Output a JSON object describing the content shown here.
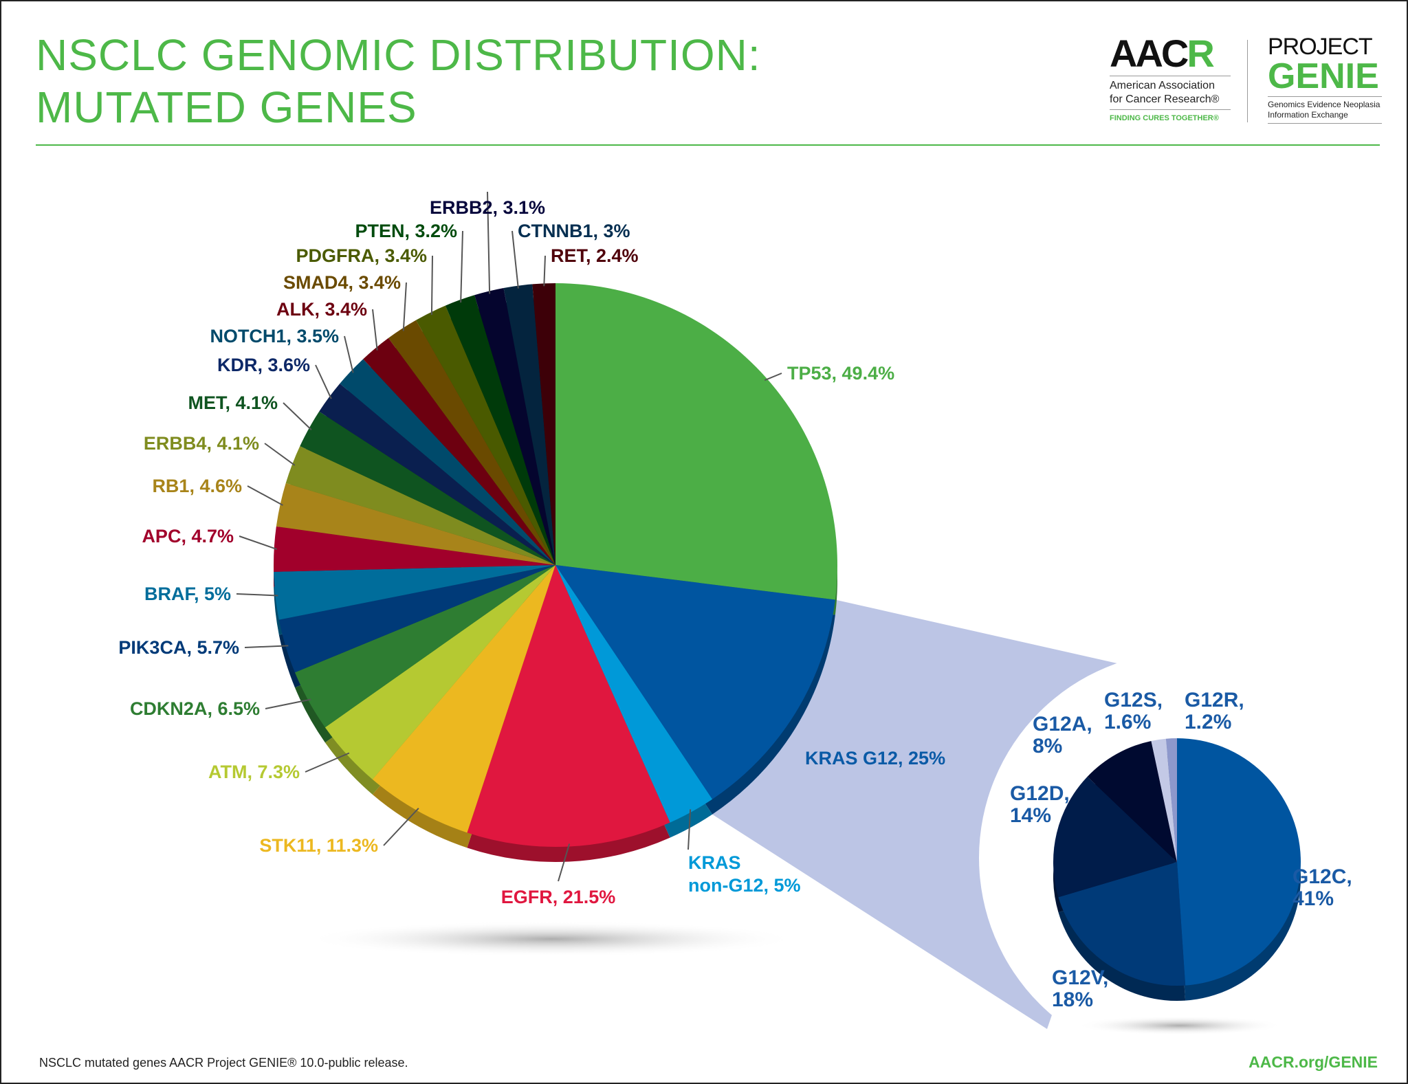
{
  "header": {
    "title_line1": "NSCLC GENOMIC DISTRIBUTION:",
    "title_line2": "MUTATED GENES",
    "aacr_logo": {
      "word_black": "AAC",
      "word_green": "R",
      "line1": "American Association",
      "line2": "for Cancer Research®",
      "tagline": "FINDING CURES TOGETHER®"
    },
    "genie_logo": {
      "project": "PROJECT",
      "genie": "GENIE",
      "line1": "Genomics Evidence Neoplasia",
      "line2": "Information Exchange"
    }
  },
  "footer": {
    "source": "NSCLC mutated genes AACR Project GENIE® 10.0-public release.",
    "link": "AACR.org/GENIE"
  },
  "chart_data": [
    {
      "type": "pie",
      "title": "",
      "start": "top, clockwise",
      "slices": [
        {
          "name": "TP53",
          "value": 49.4,
          "label": [
            "TP53, 49.4%"
          ],
          "color": "#4cae46"
        },
        {
          "name": "KRAS G12",
          "value": 25,
          "label": [
            "KRAS G12, 25%"
          ],
          "color": "#0055a0"
        },
        {
          "name": "KRAS non-G12",
          "value": 5,
          "label": [
            "KRAS",
            "non-G12, 5%"
          ],
          "color": "#0099d8"
        },
        {
          "name": "EGFR",
          "value": 21.5,
          "label": [
            "EGFR, 21.5%"
          ],
          "color": "#e0173f"
        },
        {
          "name": "STK11",
          "value": 11.3,
          "label": [
            "STK11, 11.3%"
          ],
          "color": "#ecb820"
        },
        {
          "name": "ATM",
          "value": 7.3,
          "label": [
            "ATM, 7.3%"
          ],
          "color": "#b5c932"
        },
        {
          "name": "CDKN2A",
          "value": 6.5,
          "label": [
            "CDKN2A, 6.5%"
          ],
          "color": "#2e7d32"
        },
        {
          "name": "PIK3CA",
          "value": 5.7,
          "label": [
            "PIK3CA, 5.7%"
          ],
          "color": "#003a78"
        },
        {
          "name": "BRAF",
          "value": 5,
          "label": [
            "BRAF, 5%"
          ],
          "color": "#006d9b"
        },
        {
          "name": "APC",
          "value": 4.7,
          "label": [
            "APC, 4.7%"
          ],
          "color": "#a1002b"
        },
        {
          "name": "RB1",
          "value": 4.6,
          "label": [
            "RB1, 4.6%"
          ],
          "color": "#a8841a"
        },
        {
          "name": "ERBB4",
          "value": 4.1,
          "label": [
            "ERBB4, 4.1%"
          ],
          "color": "#7f8c1f"
        },
        {
          "name": "MET",
          "value": 4.1,
          "label": [
            "MET, 4.1%"
          ],
          "color": "#0f5420"
        },
        {
          "name": "KDR",
          "value": 3.6,
          "label": [
            "KDR, 3.6%"
          ],
          "color": "#0a1f4f"
        },
        {
          "name": "NOTCH1",
          "value": 3.5,
          "label": [
            "NOTCH1, 3.5%"
          ],
          "color": "#004a6b"
        },
        {
          "name": "ALK",
          "value": 3.4,
          "label": [
            "ALK, 3.4%"
          ],
          "color": "#6d0010"
        },
        {
          "name": "SMAD4",
          "value": 3.4,
          "label": [
            "SMAD4, 3.4%"
          ],
          "color": "#6a4a00"
        },
        {
          "name": "PDGFRA",
          "value": 3.4,
          "label": [
            "PDGFRA, 3.4%"
          ],
          "color": "#4a5a00"
        },
        {
          "name": "PTEN",
          "value": 3.2,
          "label": [
            "PTEN, 3.2%"
          ],
          "color": "#003a0a"
        },
        {
          "name": "ERBB2",
          "value": 3.1,
          "label": [
            "ERBB2, 3.1%"
          ],
          "color": "#05052e"
        },
        {
          "name": "CTNNB1",
          "value": 3,
          "label": [
            "CTNNB1, 3%"
          ],
          "color": "#04243e"
        },
        {
          "name": "RET",
          "value": 2.4,
          "label": [
            "RET, 2.4%"
          ],
          "color": "#3d0008"
        }
      ]
    },
    {
      "type": "pie",
      "title": "",
      "detail_of": "KRAS G12",
      "start": "top, clockwise",
      "slices": [
        {
          "name": "G12C",
          "value": 41,
          "label": [
            "G12C,",
            "41%"
          ],
          "color": "#0055a0"
        },
        {
          "name": "G12V",
          "value": 18,
          "label": [
            "G12V,",
            "18%"
          ],
          "color": "#003a78"
        },
        {
          "name": "G12D",
          "value": 14,
          "label": [
            "G12D,",
            "14%"
          ],
          "color": "#001c4a"
        },
        {
          "name": "G12A",
          "value": 8,
          "label": [
            "G12A,",
            "8%"
          ],
          "color": "#000a30"
        },
        {
          "name": "G12S",
          "value": 1.6,
          "label": [
            "G12S,",
            "1.6%"
          ],
          "color": "#c3c9e6"
        },
        {
          "name": "G12R",
          "value": 1.2,
          "label": [
            "G12R,",
            "1.2%"
          ],
          "color": "#8d98cc"
        }
      ]
    }
  ]
}
